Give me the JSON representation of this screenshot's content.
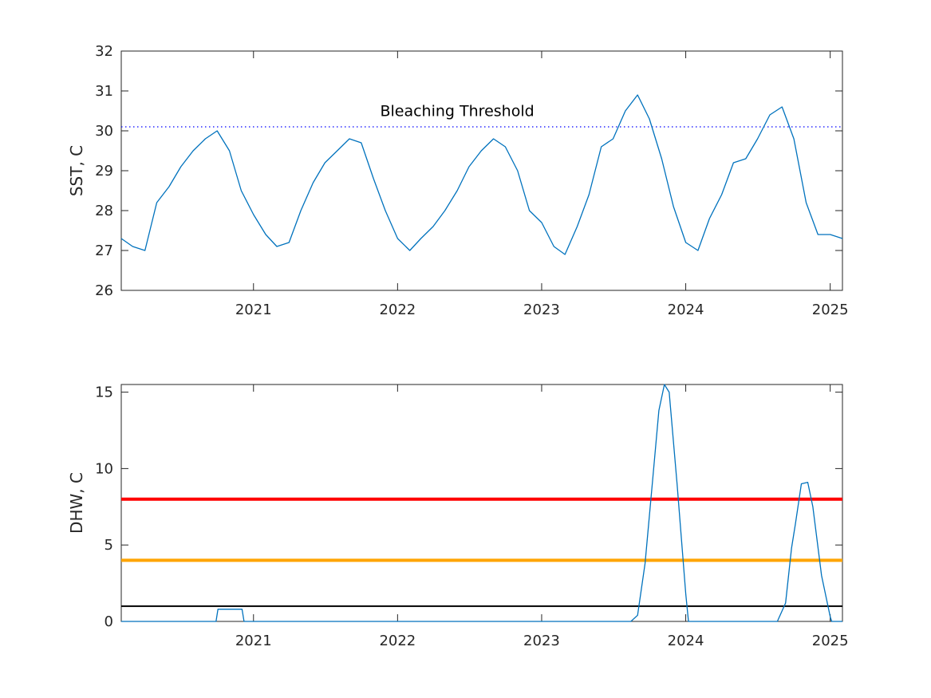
{
  "chart_data": [
    {
      "type": "line",
      "title": "",
      "xlabel": "",
      "ylabel": "SST, C",
      "xlim": [
        "2020-02-01",
        "2025-02-01"
      ],
      "ylim": [
        26,
        32
      ],
      "x_ticks": [
        "2021",
        "2022",
        "2023",
        "2024",
        "2025"
      ],
      "y_ticks": [
        "26",
        "27",
        "28",
        "29",
        "30",
        "31",
        "32"
      ],
      "grid": false,
      "annotations": [
        {
          "text": "Bleaching Threshold",
          "x": "2022-06-01",
          "y": 30.35
        }
      ],
      "reference_lines": [
        {
          "y": 30.1,
          "style": "dotted",
          "color": "#0000ff"
        }
      ],
      "series": [
        {
          "color": "#0072BD",
          "x": [
            "2020-02-01",
            "2020-03-01",
            "2020-04-01",
            "2020-05-01",
            "2020-06-01",
            "2020-07-01",
            "2020-08-01",
            "2020-09-01",
            "2020-10-01",
            "2020-11-01",
            "2020-12-01",
            "2021-01-01",
            "2021-02-01",
            "2021-03-01",
            "2021-04-01",
            "2021-05-01",
            "2021-06-01",
            "2021-07-01",
            "2021-08-01",
            "2021-09-01",
            "2021-10-01",
            "2021-11-01",
            "2021-12-01",
            "2022-01-01",
            "2022-02-01",
            "2022-03-01",
            "2022-04-01",
            "2022-05-01",
            "2022-06-01",
            "2022-07-01",
            "2022-08-01",
            "2022-09-01",
            "2022-10-01",
            "2022-11-01",
            "2022-12-01",
            "2023-01-01",
            "2023-02-01",
            "2023-03-01",
            "2023-04-01",
            "2023-05-01",
            "2023-06-01",
            "2023-07-01",
            "2023-08-01",
            "2023-09-01",
            "2023-10-01",
            "2023-11-01",
            "2023-12-01",
            "2024-01-01",
            "2024-02-01",
            "2024-03-01",
            "2024-04-01",
            "2024-05-01",
            "2024-06-01",
            "2024-07-01",
            "2024-08-01",
            "2024-09-01",
            "2024-10-01",
            "2024-11-01",
            "2024-12-01",
            "2025-01-01",
            "2025-02-01"
          ],
          "y": [
            27.3,
            27.1,
            27.0,
            28.2,
            28.6,
            29.1,
            29.5,
            29.8,
            30.0,
            29.5,
            28.5,
            27.9,
            27.4,
            27.1,
            27.2,
            28.0,
            28.7,
            29.2,
            29.5,
            29.8,
            29.7,
            28.8,
            28.0,
            27.3,
            27.0,
            27.3,
            27.6,
            28.0,
            28.5,
            29.1,
            29.5,
            29.8,
            29.6,
            29.0,
            28.0,
            27.7,
            27.1,
            26.9,
            27.6,
            28.4,
            29.6,
            29.8,
            30.5,
            30.9,
            30.3,
            29.3,
            28.1,
            27.2,
            27.0,
            27.8,
            28.4,
            29.2,
            29.3,
            29.8,
            30.4,
            30.6,
            29.8,
            28.2,
            27.4,
            27.4,
            27.3
          ]
        }
      ]
    },
    {
      "type": "line",
      "title": "",
      "xlabel": "",
      "ylabel": "DHW, C",
      "xlim": [
        "2020-02-01",
        "2025-02-01"
      ],
      "ylim": [
        0,
        15.5
      ],
      "x_ticks": [
        "2021",
        "2022",
        "2023",
        "2024",
        "2025"
      ],
      "y_ticks": [
        "0",
        "5",
        "10",
        "15"
      ],
      "grid": false,
      "reference_lines": [
        {
          "y": 8,
          "color": "#ff0000"
        },
        {
          "y": 4,
          "color": "#ffa500"
        },
        {
          "y": 1,
          "color": "#000000"
        }
      ],
      "series": [
        {
          "color": "#0072BD",
          "x": [
            "2020-02-01",
            "2020-09-28",
            "2020-10-03",
            "2020-12-03",
            "2020-12-08",
            "2023-08-15",
            "2023-09-01",
            "2023-09-20",
            "2023-10-10",
            "2023-10-25",
            "2023-11-08",
            "2023-11-20",
            "2023-12-10",
            "2024-01-01",
            "2024-01-08",
            "2024-08-20",
            "2024-09-10",
            "2024-09-25",
            "2024-10-05",
            "2024-10-20",
            "2024-11-05",
            "2024-11-18",
            "2024-12-10",
            "2025-01-01",
            "2025-01-05",
            "2025-02-01"
          ],
          "y": [
            0,
            0,
            0.8,
            0.8,
            0,
            0,
            0.4,
            3.8,
            9.5,
            13.8,
            15.5,
            15.0,
            9.0,
            1.8,
            0,
            0,
            1.2,
            4.8,
            6.4,
            9.0,
            9.1,
            7.5,
            3.0,
            0.3,
            0,
            0
          ]
        }
      ]
    }
  ]
}
